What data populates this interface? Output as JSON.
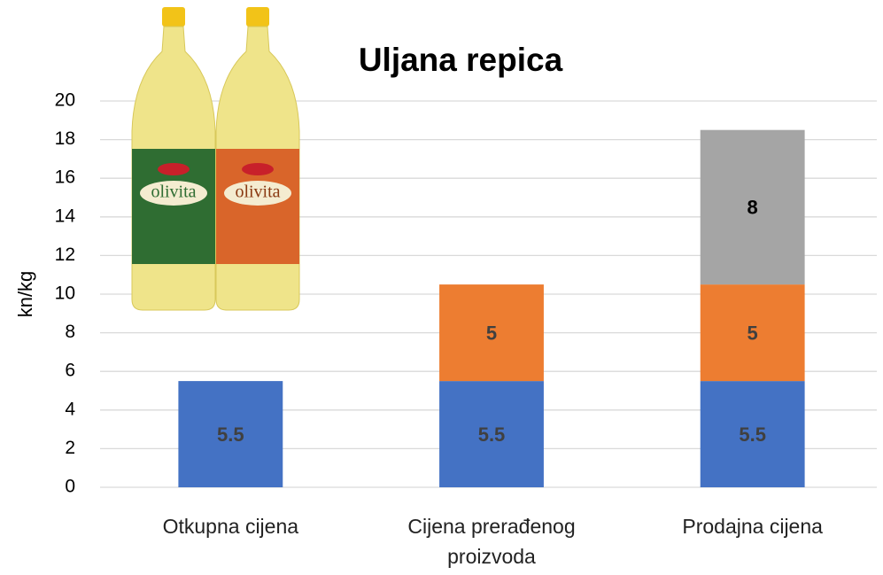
{
  "chart_data": {
    "type": "bar",
    "stacked": true,
    "title": "Uljana repica",
    "y_label": "kn/kg",
    "categories": [
      "Otkupna cijena",
      "Cijena prerađenog proizvoda",
      "Prodajna cijena"
    ],
    "series": [
      {
        "color": "#4472c4",
        "values": [
          5.5,
          5.5,
          5.5
        ]
      },
      {
        "color": "#ed7d31",
        "values": [
          null,
          5,
          5
        ]
      },
      {
        "color": "#a5a5a5",
        "values": [
          null,
          null,
          8
        ]
      }
    ],
    "ylim": [
      0,
      20
    ],
    "yticks": [
      0,
      2,
      4,
      6,
      8,
      10,
      12,
      14,
      16,
      18,
      20
    ],
    "grid": true
  }
}
